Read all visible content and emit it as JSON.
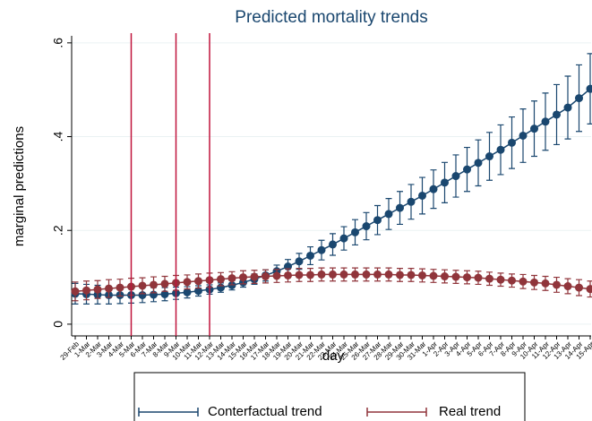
{
  "chart_data": {
    "type": "line",
    "title": "Predicted mortality trends",
    "x_label": "day",
    "y_label": "marginal predictions",
    "categories": [
      "29-Feb",
      "1-Mar",
      "2-Mar",
      "3-Mar",
      "4-Mar",
      "5-Mar",
      "6-Mar",
      "7-Mar",
      "8-Mar",
      "9-Mar",
      "10-Mar",
      "11-Mar",
      "12-Mar",
      "13-Mar",
      "14-Mar",
      "15-Mar",
      "16-Mar",
      "17-Mar",
      "18-Mar",
      "19-Mar",
      "20-Mar",
      "21-Mar",
      "22-Mar",
      "23-Mar",
      "24-Mar",
      "25-Mar",
      "26-Mar",
      "27-Mar",
      "28-Mar",
      "29-Mar",
      "30-Mar",
      "31-Mar",
      "1-Apr",
      "2-Apr",
      "3-Apr",
      "4-Apr",
      "5-Apr",
      "6-Apr",
      "7-Apr",
      "8-Apr",
      "9-Apr",
      "10-Apr",
      "11-Apr",
      "12-Apr",
      "13-Apr",
      "14-Apr",
      "15-Apr"
    ],
    "series": [
      {
        "name": "Conterfactual trend",
        "color": "#1a476f",
        "values": [
          0.065,
          0.064,
          0.063,
          0.062,
          0.062,
          0.062,
          0.062,
          0.063,
          0.064,
          0.066,
          0.068,
          0.071,
          0.074,
          0.078,
          0.083,
          0.089,
          0.096,
          0.104,
          0.113,
          0.123,
          0.134,
          0.146,
          0.158,
          0.17,
          0.183,
          0.196,
          0.209,
          0.222,
          0.235,
          0.248,
          0.261,
          0.274,
          0.288,
          0.302,
          0.316,
          0.33,
          0.344,
          0.358,
          0.372,
          0.387,
          0.402,
          0.417,
          0.432,
          0.447,
          0.462,
          0.482,
          0.502
        ],
        "errors": [
          0.022,
          0.021,
          0.02,
          0.019,
          0.018,
          0.017,
          0.016,
          0.015,
          0.014,
          0.013,
          0.012,
          0.011,
          0.01,
          0.01,
          0.01,
          0.01,
          0.011,
          0.012,
          0.013,
          0.015,
          0.017,
          0.019,
          0.021,
          0.023,
          0.025,
          0.027,
          0.029,
          0.031,
          0.033,
          0.035,
          0.037,
          0.039,
          0.041,
          0.043,
          0.045,
          0.047,
          0.049,
          0.051,
          0.053,
          0.055,
          0.057,
          0.059,
          0.061,
          0.064,
          0.067,
          0.071,
          0.075
        ]
      },
      {
        "name": "Real trend",
        "color": "#90353b",
        "values": [
          0.07,
          0.072,
          0.074,
          0.076,
          0.078,
          0.08,
          0.082,
          0.084,
          0.086,
          0.088,
          0.09,
          0.092,
          0.094,
          0.096,
          0.098,
          0.1,
          0.101,
          0.102,
          0.103,
          0.104,
          0.105,
          0.105,
          0.106,
          0.106,
          0.106,
          0.106,
          0.106,
          0.106,
          0.106,
          0.105,
          0.105,
          0.104,
          0.103,
          0.102,
          0.101,
          0.1,
          0.099,
          0.097,
          0.095,
          0.093,
          0.091,
          0.089,
          0.087,
          0.084,
          0.081,
          0.078,
          0.075
        ],
        "errors": [
          0.02,
          0.02,
          0.019,
          0.019,
          0.018,
          0.018,
          0.017,
          0.017,
          0.016,
          0.016,
          0.015,
          0.015,
          0.015,
          0.014,
          0.014,
          0.014,
          0.014,
          0.014,
          0.014,
          0.014,
          0.014,
          0.014,
          0.014,
          0.014,
          0.014,
          0.014,
          0.014,
          0.014,
          0.014,
          0.014,
          0.014,
          0.014,
          0.014,
          0.014,
          0.014,
          0.014,
          0.014,
          0.014,
          0.014,
          0.014,
          0.015,
          0.015,
          0.015,
          0.016,
          0.016,
          0.017,
          0.017
        ]
      }
    ],
    "vlines": [
      "5-Mar",
      "9-Mar",
      "12-Mar"
    ],
    "vline_color": "#c0143c",
    "ylim": [
      -0.025,
      0.615
    ],
    "yticks": [
      0,
      {
        "value": 0.2,
        "label": ".2"
      },
      {
        "value": 0.4,
        "label": ".4"
      },
      {
        "value": 0.6,
        "label": ".6"
      }
    ],
    "grid": true,
    "legend": "bottom"
  }
}
